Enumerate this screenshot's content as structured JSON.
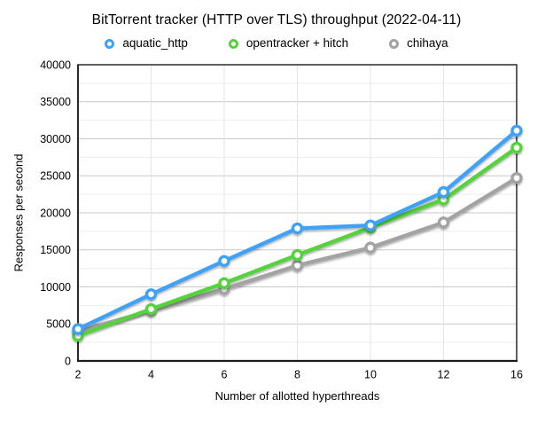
{
  "chart_data": {
    "type": "line",
    "title": "BitTorrent tracker (HTTP over TLS) throughput (2022-04-11)",
    "xlabel": "Number of allotted hyperthreads",
    "ylabel": "Responses per second",
    "x": [
      2,
      4,
      6,
      8,
      10,
      12,
      16
    ],
    "x_tick_labels": [
      "2",
      "4",
      "6",
      "8",
      "10",
      "12",
      "16"
    ],
    "ylim": [
      0,
      40000
    ],
    "y_major_step": 5000,
    "y_minor_step": 2500,
    "grid": true,
    "legend_position": "top",
    "series": [
      {
        "name": "aquatic_http",
        "color": "#3FA2F7",
        "values": [
          4300,
          9000,
          13500,
          17900,
          18300,
          22800,
          31100
        ]
      },
      {
        "name": "opentracker + hitch",
        "color": "#57D23C",
        "values": [
          3400,
          7000,
          10500,
          14300,
          18000,
          21800,
          28800
        ]
      },
      {
        "name": "chihaya",
        "color": "#A3A3A3",
        "values": [
          4000,
          6800,
          9700,
          12900,
          15300,
          18700,
          24700
        ]
      }
    ],
    "colors": {
      "major_gridline": "#c9c9c9",
      "minor_gridline": "#ededed",
      "vertical_gridline": "#e4e4e4",
      "axis_border": "#1c1c1e",
      "marker_fill": "#ffffff"
    }
  }
}
